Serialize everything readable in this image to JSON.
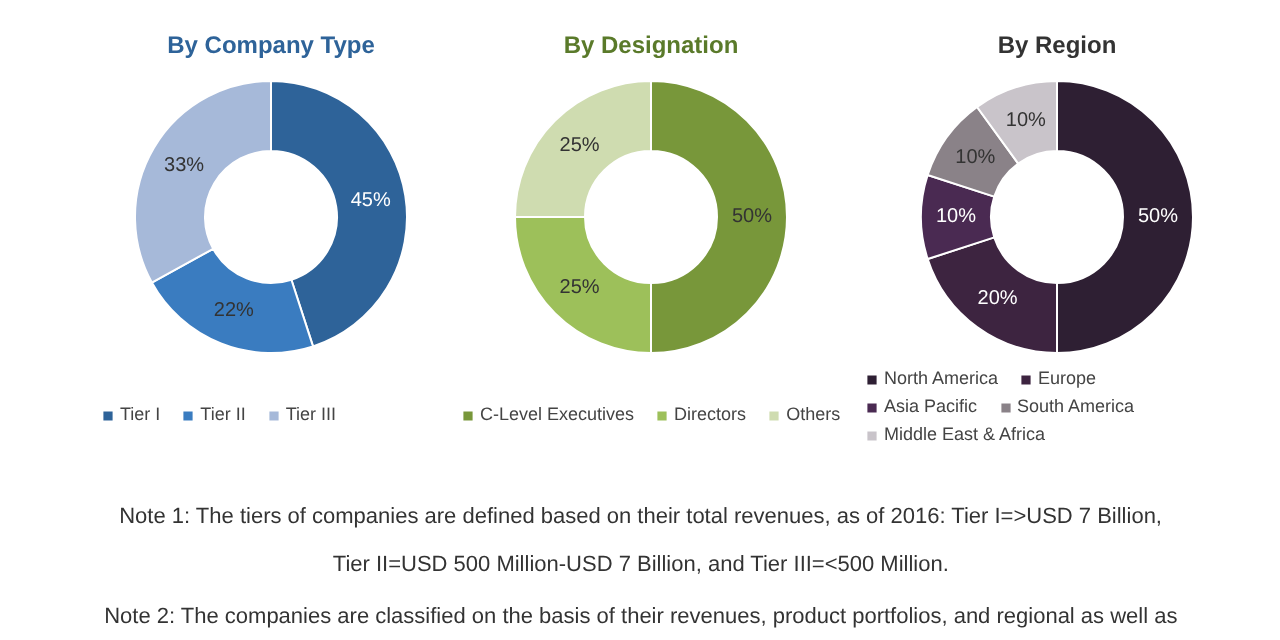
{
  "chart_data": [
    {
      "type": "donut",
      "title": "By Company Type",
      "categories": [
        "Tier I",
        "Tier II",
        "Tier III"
      ],
      "values": [
        45,
        22,
        33
      ],
      "colors": [
        "#2e6399",
        "#3a7cc0",
        "#a6b9d9"
      ],
      "value_labels": [
        "45%",
        "22%",
        "33%"
      ],
      "legend": "bottom"
    },
    {
      "type": "donut",
      "title": "By Designation",
      "categories": [
        "C-Level Executives",
        "Directors",
        "Others"
      ],
      "values": [
        50,
        25,
        25
      ],
      "colors": [
        "#78973a",
        "#9dc05a",
        "#cfdcb0"
      ],
      "value_labels": [
        "50%",
        "25%",
        "25%"
      ],
      "legend": "bottom"
    },
    {
      "type": "donut",
      "title": "By Region",
      "categories": [
        "North America",
        "Europe",
        "Asia Pacific",
        "South America",
        "Middle East & Africa"
      ],
      "values": [
        50,
        20,
        10,
        10,
        10
      ],
      "colors": [
        "#2e1f33",
        "#3d2440",
        "#4a2a52",
        "#8a8288",
        "#c9c4ca"
      ],
      "value_labels": [
        "50%",
        "20%",
        "10%",
        "10%",
        "10%"
      ],
      "legend": "bottom",
      "annotations": [
        "Note 1: The tiers of companies are defined based on their total revenues, as of 2016: Tier I=>USD 7 Billion, Tier II=USD 500 Million-USD 7 Billion, and Tier III=<500 Million.",
        "Note 2: The companies are classified on the basis of their revenues, product portfolios, and regional as well as"
      ]
    }
  ]
}
